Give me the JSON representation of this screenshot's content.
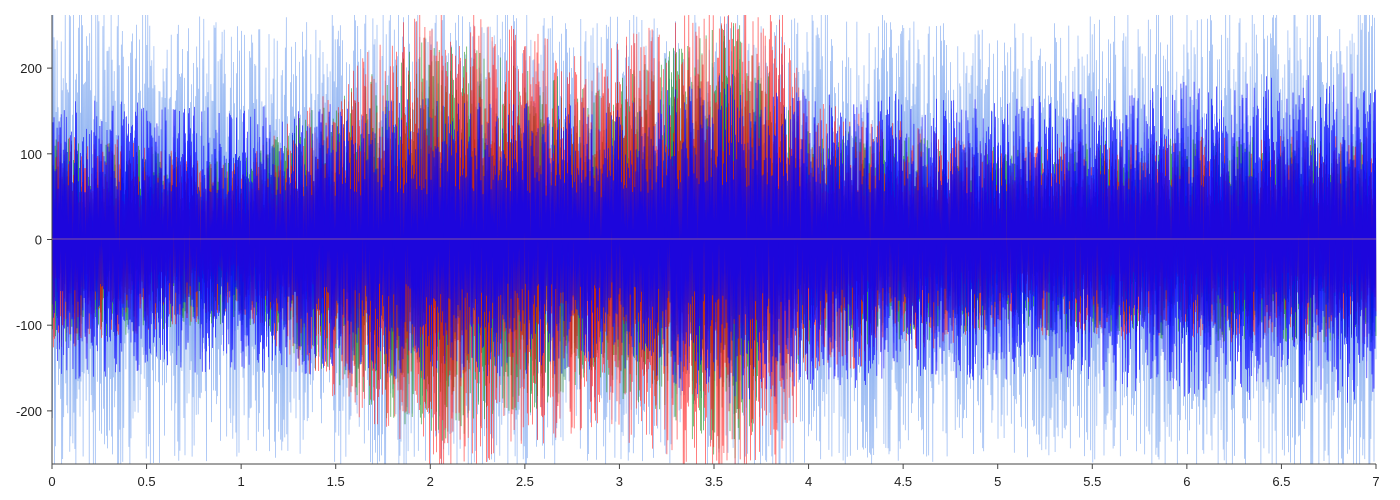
{
  "chart_data": {
    "type": "line",
    "title": "",
    "xlabel": "",
    "ylabel": "",
    "xlim": [
      0,
      7
    ],
    "ylim": [
      -262,
      262
    ],
    "grid": false,
    "legend": "none",
    "x_ticks": [
      0,
      0.5,
      1,
      1.5,
      2,
      2.5,
      3,
      3.5,
      4,
      4.5,
      5,
      5.5,
      6,
      6.5,
      7
    ],
    "x_tick_labels": [
      "0",
      "0.5",
      "1",
      "1.5",
      "2",
      "2.5",
      "3",
      "3.5",
      "4",
      "4.5",
      "5",
      "5.5",
      "6",
      "6.5",
      "7"
    ],
    "y_ticks": [
      200,
      100,
      0,
      -100,
      -200
    ],
    "y_tick_labels": [
      "200",
      "100",
      "0",
      "-100",
      "-200"
    ],
    "series": [
      {
        "color": "#0000ff",
        "description": "dense oscillating signal, clipped at axis limits",
        "envelope": [
          [
            0,
            150
          ],
          [
            1,
            140
          ],
          [
            2,
            150
          ],
          [
            3,
            140
          ],
          [
            3.5,
            180
          ],
          [
            4,
            160
          ],
          [
            5,
            150
          ],
          [
            6,
            170
          ],
          [
            7,
            180
          ]
        ]
      },
      {
        "color": "#ff0000",
        "description": "dense oscillating signal with bursts near x=2.0, 2.85, 3.55, 3.85",
        "envelope": [
          [
            0,
            120
          ],
          [
            1,
            80
          ],
          [
            2,
            260
          ],
          [
            2.85,
            200
          ],
          [
            3.55,
            260
          ],
          [
            3.85,
            260
          ],
          [
            4,
            150
          ],
          [
            5,
            100
          ],
          [
            6,
            110
          ],
          [
            7,
            110
          ]
        ]
      },
      {
        "color": "#008000",
        "description": "dense oscillating signal",
        "envelope": [
          [
            0,
            110
          ],
          [
            1,
            90
          ],
          [
            2,
            220
          ],
          [
            2.9,
            160
          ],
          [
            3.6,
            240
          ],
          [
            4,
            120
          ],
          [
            5,
            100
          ],
          [
            6,
            110
          ],
          [
            7,
            110
          ]
        ]
      },
      {
        "color": "#6495ed",
        "description": "dense oscillating signal, light blue",
        "envelope": [
          [
            0,
            260
          ],
          [
            1,
            230
          ],
          [
            2,
            260
          ],
          [
            3,
            240
          ],
          [
            4,
            250
          ],
          [
            5,
            230
          ],
          [
            6,
            250
          ],
          [
            7,
            260
          ]
        ]
      }
    ]
  }
}
